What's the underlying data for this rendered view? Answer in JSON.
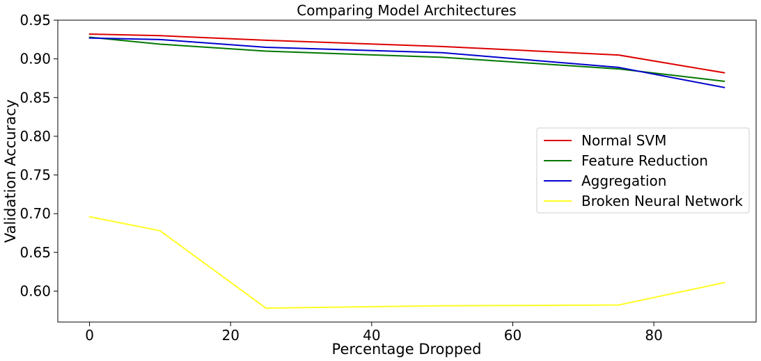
{
  "chart_data": {
    "type": "line",
    "title": "Comparing Model Architectures",
    "xlabel": "Percentage Dropped",
    "ylabel": "Validation Accuracy",
    "x": [
      0,
      10,
      25,
      50,
      75,
      90
    ],
    "xlim": [
      -4.5,
      94.5
    ],
    "ylim": [
      0.56,
      0.95
    ],
    "xticks": [
      0,
      20,
      40,
      60,
      80
    ],
    "xtick_labels": [
      "0",
      "20",
      "40",
      "60",
      "80"
    ],
    "yticks": [
      0.6,
      0.65,
      0.7,
      0.75,
      0.8,
      0.85,
      0.9,
      0.95
    ],
    "ytick_labels": [
      "0.60",
      "0.65",
      "0.70",
      "0.75",
      "0.80",
      "0.85",
      "0.90",
      "0.95"
    ],
    "grid": false,
    "legend_position": "center-right",
    "series": [
      {
        "name": "Normal SVM",
        "color": "#dd0000",
        "values": [
          0.932,
          0.93,
          0.924,
          0.916,
          0.905,
          0.882
        ]
      },
      {
        "name": "Feature Reduction",
        "color": "#007700",
        "values": [
          0.928,
          0.919,
          0.91,
          0.902,
          0.887,
          0.871
        ]
      },
      {
        "name": "Aggregation",
        "color": "#0000cc",
        "values": [
          0.927,
          0.925,
          0.915,
          0.908,
          0.889,
          0.863
        ]
      },
      {
        "name": "Broken Neural Network",
        "color": "#ffff22",
        "values": [
          0.696,
          0.678,
          0.578,
          0.581,
          0.582,
          0.611
        ]
      }
    ]
  }
}
